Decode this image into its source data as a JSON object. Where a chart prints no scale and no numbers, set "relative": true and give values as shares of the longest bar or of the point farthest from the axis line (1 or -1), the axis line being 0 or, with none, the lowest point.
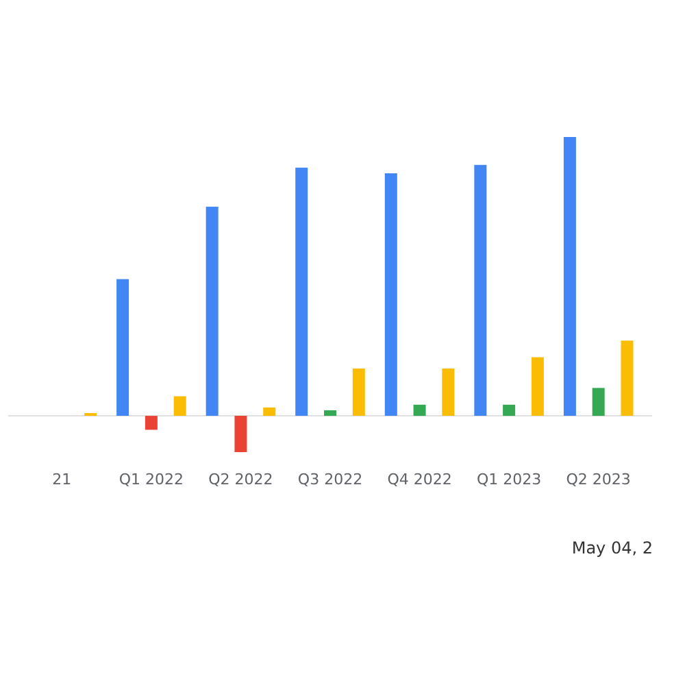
{
  "chart_data": {
    "type": "bar",
    "relative": true,
    "grid": false,
    "categories": [
      "21",
      "Q1 2022",
      "Q2 2022",
      "Q3 2022",
      "Q4 2022",
      "Q1 2023",
      "Q2 2023"
    ],
    "series": [
      {
        "color": "#4285f4",
        "values": [
          null,
          0.49,
          0.75,
          0.89,
          0.87,
          0.9,
          1.0
        ]
      },
      {
        "colors": [
          "#34a853",
          "#ea4335",
          "#ea4335",
          "#34a853",
          "#34a853",
          "#34a853",
          "#34a853"
        ],
        "values": [
          null,
          -0.05,
          -0.13,
          0.02,
          0.04,
          0.04,
          0.1
        ]
      },
      {
        "color": "#fbbc04",
        "values": [
          0.01,
          0.07,
          0.03,
          0.17,
          0.17,
          0.21,
          0.27
        ]
      }
    ],
    "annotations": [
      "May 04, 2"
    ]
  }
}
